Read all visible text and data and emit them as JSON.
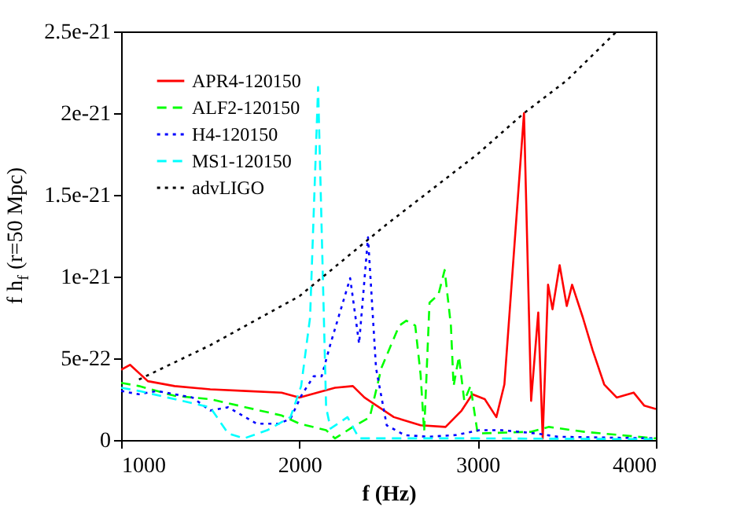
{
  "chart_data": {
    "type": "line",
    "xlabel": "f (Hz)",
    "ylabel": "f h$_{f}$ (r=50 Mpc)",
    "xlim": [
      1000,
      4000
    ],
    "xticks": [
      1000,
      2000,
      3000,
      4000
    ],
    "ylim": [
      0,
      2.5e-21
    ],
    "yticks": [
      {
        "value": 0,
        "label": "0"
      },
      {
        "value": 5e-22,
        "label": "5e-22"
      },
      {
        "value": 1e-21,
        "label": "1e-21"
      },
      {
        "value": 1.5e-21,
        "label": "1.5e-21"
      },
      {
        "value": 2e-21,
        "label": "2e-21"
      },
      {
        "value": 2.5e-21,
        "label": "2.5e-21"
      }
    ],
    "grid": false,
    "legend": "top left",
    "marker": "none",
    "series": [
      {
        "name": "APR4-120150",
        "color": "#ff0000",
        "line_style": "solid",
        "x": [
          1000,
          1050,
          1150,
          1300,
          1500,
          1700,
          1900,
          2000,
          2200,
          2300,
          2365,
          2530,
          2680,
          2820,
          2910,
          2970,
          3040,
          3105,
          3150,
          3260,
          3300,
          3340,
          3365,
          3395,
          3420,
          3460,
          3500,
          3530,
          3590,
          3645,
          3710,
          3780,
          3875,
          3935,
          4000
        ],
        "values": [
          4.3e-22,
          4.6e-22,
          3.6e-22,
          3.3e-22,
          3.1e-22,
          3e-22,
          2.9e-22,
          2.6e-22,
          3.2e-22,
          3.3e-22,
          2.6e-22,
          1.4e-22,
          9e-23,
          8e-23,
          1.8e-22,
          2.8e-22,
          2.5e-22,
          1.4e-22,
          3.4e-22,
          2e-21,
          2.4e-22,
          7.8e-22,
          1e-23,
          9.5e-22,
          8e-22,
          1.07e-21,
          8.2e-22,
          9.5e-22,
          7.5e-22,
          5.5e-22,
          3.4e-22,
          2.6e-22,
          2.9e-22,
          2.1e-22,
          1.9e-22
        ]
      },
      {
        "name": "ALF2-120150",
        "color": "#00ff00",
        "line_style": "dashed",
        "x": [
          1000,
          1100,
          1300,
          1500,
          1700,
          1900,
          2000,
          2150,
          2200,
          2300,
          2395,
          2460,
          2560,
          2600,
          2650,
          2680,
          2700,
          2730,
          2780,
          2815,
          2850,
          2865,
          2895,
          2925,
          2960,
          3000,
          3300,
          3400,
          3600,
          3800,
          4000
        ],
        "values": [
          3.5e-22,
          3.3e-22,
          2.7e-22,
          2.5e-22,
          2e-22,
          1.5e-22,
          1e-22,
          6e-23,
          1e-23,
          8e-23,
          1.4e-22,
          4.4e-22,
          7e-22,
          7.3e-22,
          7e-22,
          4e-22,
          5e-23,
          8.4e-22,
          8.9e-22,
          1.04e-21,
          7e-22,
          3.3e-22,
          5.1e-22,
          2.4e-22,
          3.3e-22,
          4e-23,
          5e-23,
          8e-23,
          5e-23,
          3e-23,
          1e-23
        ]
      },
      {
        "name": "H4-120150",
        "color": "#0000ff",
        "line_style": "dotted",
        "x": [
          1000,
          1100,
          1200,
          1400,
          1500,
          1600,
          1760,
          1885,
          1950,
          2010,
          2080,
          2125,
          2175,
          2285,
          2335,
          2385,
          2430,
          2490,
          2590,
          2720,
          2875,
          3010,
          3135,
          3330,
          3450,
          4000
        ],
        "values": [
          3e-22,
          2.8e-22,
          3e-22,
          2.6e-22,
          1.8e-22,
          2e-22,
          1e-22,
          1e-22,
          1.3e-22,
          2.7e-22,
          3.9e-22,
          3.9e-22,
          5.9e-22,
          9.9e-22,
          5.9e-22,
          1.24e-21,
          4.4e-22,
          9e-23,
          3e-23,
          2e-23,
          3e-23,
          6e-23,
          6e-23,
          4e-23,
          2e-23,
          1e-23
        ]
      },
      {
        "name": "MS1-120150",
        "color": "#00ffff",
        "line_style": "dashed",
        "x": [
          1000,
          1100,
          1300,
          1500,
          1600,
          1690,
          1820,
          1950,
          2010,
          2060,
          2105,
          2150,
          2175,
          2270,
          2335,
          3000,
          4000
        ],
        "values": [
          3.2e-22,
          3e-22,
          2.5e-22,
          2e-22,
          4e-23,
          1e-23,
          6e-23,
          1.4e-22,
          3.3e-22,
          7.5e-22,
          2.16e-21,
          2e-22,
          7e-23,
          1.4e-22,
          1e-23,
          1e-23,
          5e-24
        ]
      },
      {
        "name": "advLIGO",
        "color": "#000000",
        "line_style": "dotted",
        "x": [
          1100,
          1500,
          2000,
          2490,
          3000,
          3260,
          3500,
          3780
        ],
        "values": [
          3.7e-22,
          5.8e-22,
          8.8e-22,
          1.32e-21,
          1.75e-21,
          2e-21,
          2.2e-21,
          2.5e-21
        ]
      }
    ]
  }
}
